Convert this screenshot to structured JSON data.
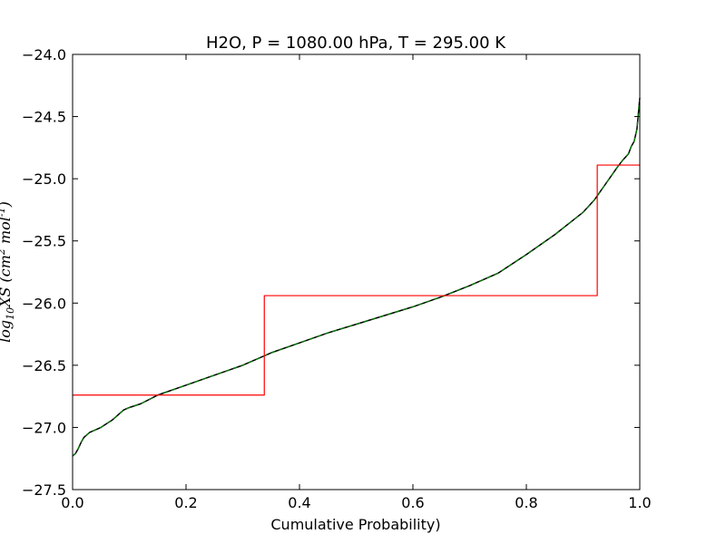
{
  "chart_data": {
    "type": "line",
    "title": "H2O, P = 1080.00 hPa, T = 295.00 K",
    "xlabel": "Cumulative Probability)",
    "ylabel_parts": {
      "log": "log",
      "sub": "10",
      "mid": "XS (cm",
      "sup1": "2",
      "mid2": " mol",
      "sup2": "-1",
      "end": ")"
    },
    "xlim": [
      0.0,
      1.0
    ],
    "ylim": [
      -27.5,
      -24.0
    ],
    "x_ticks": [
      0.0,
      0.2,
      0.4,
      0.6,
      0.8,
      1.0
    ],
    "x_tick_labels": [
      "0.0",
      "0.2",
      "0.4",
      "0.6",
      "0.8",
      "1.0"
    ],
    "y_ticks": [
      -24.0,
      -24.5,
      -25.0,
      -25.5,
      -26.0,
      -26.5,
      -27.0,
      -27.5
    ],
    "y_tick_labels": [
      "−24.0",
      "−24.5",
      "−25.0",
      "−25.5",
      "−26.0",
      "−26.5",
      "−27.0",
      "−27.5"
    ],
    "grid": false,
    "series": [
      {
        "color": "#000000",
        "style": "line",
        "x": [
          0.0,
          0.005,
          0.01,
          0.015,
          0.02,
          0.03,
          0.04,
          0.05,
          0.06,
          0.07,
          0.08,
          0.09,
          0.1,
          0.12,
          0.15,
          0.2,
          0.25,
          0.3,
          0.35,
          0.4,
          0.45,
          0.5,
          0.55,
          0.6,
          0.65,
          0.7,
          0.75,
          0.8,
          0.85,
          0.9,
          0.92,
          0.94,
          0.96,
          0.97,
          0.98,
          0.985,
          0.99,
          0.995,
          1.0
        ],
        "y": [
          -27.23,
          -27.21,
          -27.17,
          -27.12,
          -27.08,
          -27.04,
          -27.02,
          -27.0,
          -26.97,
          -26.94,
          -26.9,
          -26.86,
          -26.84,
          -26.81,
          -26.74,
          -26.66,
          -26.58,
          -26.5,
          -26.4,
          -26.32,
          -26.24,
          -26.17,
          -26.1,
          -26.03,
          -25.95,
          -25.86,
          -25.76,
          -25.61,
          -25.45,
          -25.27,
          -25.17,
          -25.04,
          -24.91,
          -24.85,
          -24.8,
          -24.74,
          -24.7,
          -24.6,
          -24.35
        ]
      },
      {
        "color": "#008000",
        "style": "dashed",
        "x": [
          0.0,
          0.005,
          0.01,
          0.015,
          0.02,
          0.03,
          0.04,
          0.05,
          0.06,
          0.07,
          0.08,
          0.09,
          0.1,
          0.12,
          0.15,
          0.2,
          0.25,
          0.3,
          0.35,
          0.4,
          0.45,
          0.5,
          0.55,
          0.6,
          0.65,
          0.7,
          0.75,
          0.8,
          0.85,
          0.9,
          0.92,
          0.94,
          0.96,
          0.97,
          0.98,
          0.985,
          0.99,
          0.995,
          1.0
        ],
        "y": [
          -27.23,
          -27.21,
          -27.17,
          -27.12,
          -27.08,
          -27.04,
          -27.02,
          -27.0,
          -26.97,
          -26.94,
          -26.9,
          -26.86,
          -26.84,
          -26.81,
          -26.74,
          -26.66,
          -26.58,
          -26.5,
          -26.4,
          -26.32,
          -26.24,
          -26.17,
          -26.1,
          -26.03,
          -25.95,
          -25.86,
          -25.76,
          -25.61,
          -25.45,
          -25.27,
          -25.17,
          -25.04,
          -24.91,
          -24.85,
          -24.8,
          -24.74,
          -24.7,
          -24.6,
          -24.35
        ]
      },
      {
        "color": "#ff0000",
        "style": "step",
        "x": [
          0.0,
          0.338,
          0.338,
          0.925,
          0.925,
          1.0
        ],
        "y": [
          -26.74,
          -26.74,
          -25.94,
          -25.94,
          -24.89,
          -24.89
        ]
      }
    ]
  }
}
